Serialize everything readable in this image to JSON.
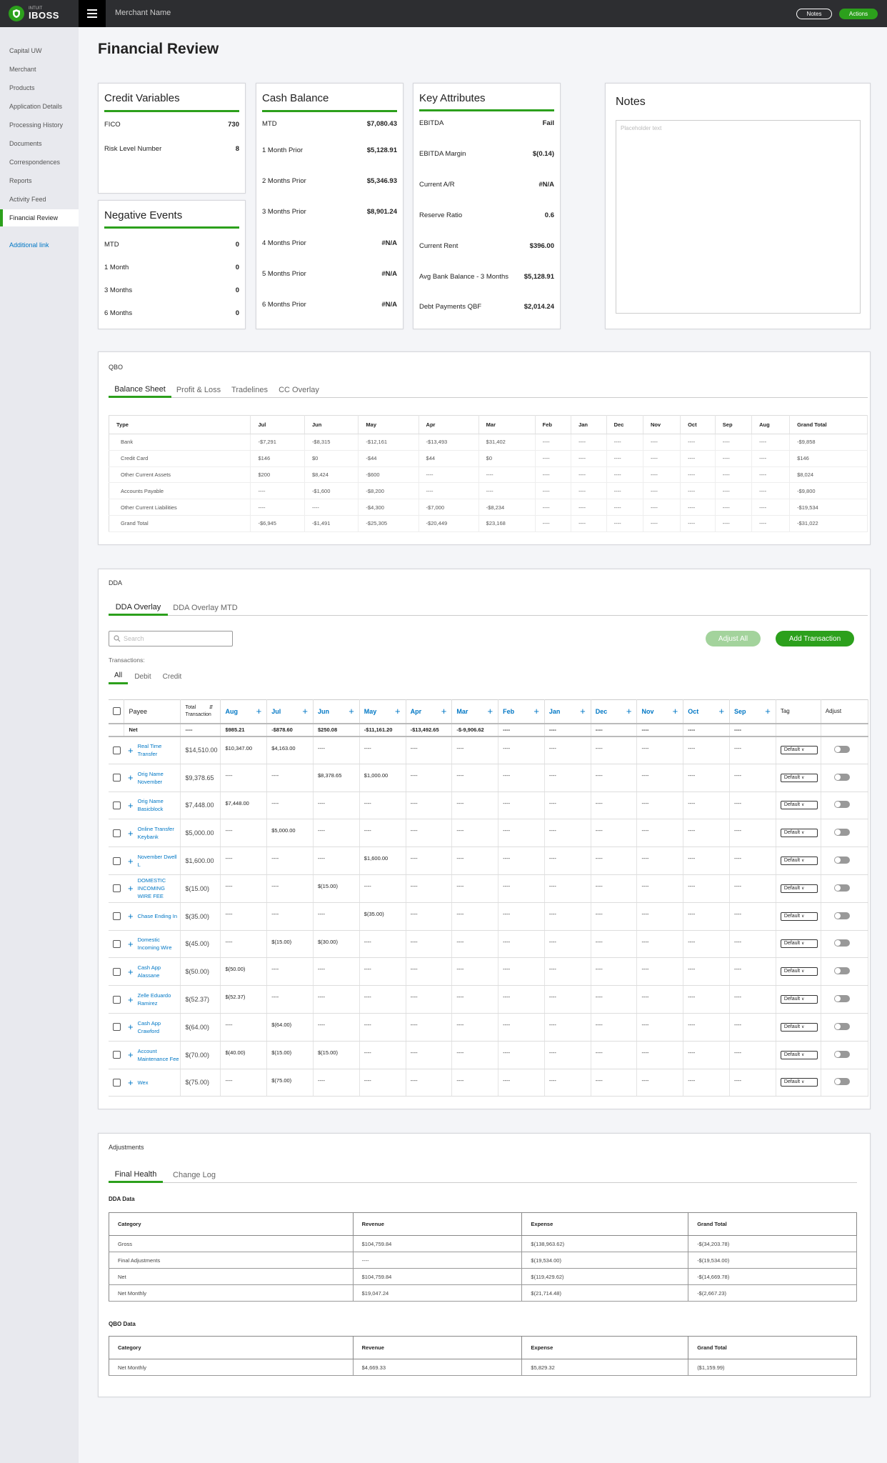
{
  "brand": {
    "small": "INTUIT",
    "name": "IBOSS"
  },
  "header": {
    "merchant": "Merchant Name",
    "notes_btn": "Notes",
    "actions_btn": "Actions"
  },
  "sidebar": {
    "items": [
      "Capital UW",
      "Merchant",
      "Products",
      "Application Details",
      "Processing History",
      "Documents",
      "Correspondences",
      "Reports",
      "Activity Feed",
      "Financial Review"
    ],
    "active": "Financial Review",
    "link": "Additional link"
  },
  "page_title": "Financial Review",
  "credit": {
    "title": "Credit Variables",
    "rows": [
      {
        "label": "FICO",
        "value": "730"
      },
      {
        "label": "Risk Level Number",
        "value": "8"
      }
    ]
  },
  "negative": {
    "title": "Negative Events",
    "rows": [
      {
        "label": "MTD",
        "value": "0"
      },
      {
        "label": "1 Month",
        "value": "0"
      },
      {
        "label": "3 Months",
        "value": "0"
      },
      {
        "label": "6 Months",
        "value": "0"
      }
    ]
  },
  "cash": {
    "title": "Cash Balance",
    "rows": [
      {
        "label": "MTD",
        "value": "$7,080.43"
      },
      {
        "label": "1 Month Prior",
        "value": "$5,128.91"
      },
      {
        "label": "2 Months Prior",
        "value": "$5,346.93"
      },
      {
        "label": "3 Months Prior",
        "value": "$8,901.24"
      },
      {
        "label": "4 Months Prior",
        "value": "#N/A"
      },
      {
        "label": "5 Months Prior",
        "value": "#N/A"
      },
      {
        "label": "6 Months Prior",
        "value": "#N/A"
      }
    ]
  },
  "key": {
    "title": "Key Attributes",
    "rows": [
      {
        "label": "EBITDA",
        "value": "Fail"
      },
      {
        "label": "EBITDA Margin",
        "value": "$(0.14)"
      },
      {
        "label": "Current A/R",
        "value": "#N/A"
      },
      {
        "label": "Reserve Ratio",
        "value": "0.6"
      },
      {
        "label": "Current Rent",
        "value": "$396.00"
      },
      {
        "label": "Avg Bank Balance - 3 Months",
        "value": "$5,128.91"
      },
      {
        "label": "Debt Payments QBF",
        "value": "$2,014.24"
      }
    ]
  },
  "notes": {
    "title": "Notes",
    "placeholder": "Placeholder text"
  },
  "qbo": {
    "label": "QBO",
    "tabs": [
      "Balance Sheet",
      "Profit & Loss",
      "Tradelines",
      "CC Overlay"
    ],
    "headers": [
      "Type",
      "Jul",
      "Jun",
      "May",
      "Apr",
      "Mar",
      "Feb",
      "Jan",
      "Dec",
      "Nov",
      "Oct",
      "Sep",
      "Aug",
      "Grand Total"
    ],
    "rows": [
      [
        "Bank",
        "-$7,291",
        "-$8,315",
        "-$12,161",
        "-$13,493",
        "$31,402",
        "----",
        "----",
        "----",
        "----",
        "----",
        "----",
        "----",
        "-$9,858"
      ],
      [
        "Credit Card",
        "$146",
        "$0",
        "-$44",
        "$44",
        "$0",
        "----",
        "----",
        "----",
        "----",
        "----",
        "----",
        "----",
        "$146"
      ],
      [
        "Other Current Assets",
        "$200",
        "$8,424",
        "-$600",
        "----",
        "----",
        "----",
        "----",
        "----",
        "----",
        "----",
        "----",
        "----",
        "$8,024"
      ],
      [
        "Accounts Payable",
        "----",
        "-$1,600",
        "-$8,200",
        "----",
        "----",
        "----",
        "----",
        "----",
        "----",
        "----",
        "----",
        "----",
        "-$9,800"
      ],
      [
        "Other Current Liabilities",
        "----",
        "----",
        "-$4,300",
        "-$7,000",
        "-$8,234",
        "----",
        "----",
        "----",
        "----",
        "----",
        "----",
        "----",
        "-$19,534"
      ],
      [
        "Grand Total",
        "-$6,945",
        "-$1,491",
        "-$25,305",
        "-$20,449",
        "$23,168",
        "----",
        "----",
        "----",
        "----",
        "----",
        "----",
        "----",
        "-$31,022"
      ]
    ]
  },
  "dda": {
    "label": "DDA",
    "tabs": [
      "DDA Overlay",
      "DDA Overlay MTD"
    ],
    "search_placeholder": "Search",
    "adjust_all": "Adjust All",
    "add_txn": "Add Transaction",
    "txn_label": "Transactions:",
    "filters": [
      "All",
      "Debit",
      "Credit"
    ],
    "payee_header": "Payee",
    "total_header": "Total Transaction",
    "months": [
      "Aug",
      "Jul",
      "Jun",
      "May",
      "Apr",
      "Mar",
      "Feb",
      "Jan",
      "Dec",
      "Nov",
      "Oct",
      "Sep"
    ],
    "tag_header": "Tag",
    "adjust_header": "Adjust",
    "net": {
      "label": "Net",
      "total": "----",
      "values": [
        "$985.21",
        "-$878.60",
        "$250.08",
        "-$11,161.20",
        "-$13,492.65",
        "-$-9,906.62",
        "----",
        "----",
        "----",
        "----",
        "----",
        "----"
      ]
    },
    "tag_default": "Default",
    "rows": [
      {
        "payee": "Real Time Transfer",
        "total": "$14,510.00",
        "values": [
          "$10,347.00",
          "$4,163.00",
          "----",
          "----",
          "----",
          "----",
          "----",
          "----",
          "----",
          "----",
          "----",
          "----"
        ]
      },
      {
        "payee": "Orig Name November",
        "total": "$9,378.65",
        "values": [
          "----",
          "----",
          "$8,378.65",
          "$1,000.00",
          "----",
          "----",
          "----",
          "----",
          "----",
          "----",
          "----",
          "----"
        ]
      },
      {
        "payee": "Orig Name Basicblock",
        "total": "$7,448.00",
        "values": [
          "$7,448.00",
          "----",
          "----",
          "----",
          "----",
          "----",
          "----",
          "----",
          "----",
          "----",
          "----",
          "----"
        ]
      },
      {
        "payee": "Online Transfer Keybank",
        "total": "$5,000.00",
        "values": [
          "----",
          "$5,000.00",
          "----",
          "----",
          "----",
          "----",
          "----",
          "----",
          "----",
          "----",
          "----",
          "----"
        ]
      },
      {
        "payee": "November Dwell L",
        "total": "$1,600.00",
        "values": [
          "----",
          "----",
          "----",
          "$1,600.00",
          "----",
          "----",
          "----",
          "----",
          "----",
          "----",
          "----",
          "----"
        ]
      },
      {
        "payee": "DOMESTIC INCOMING WIRE FEE",
        "total": "$(15.00)",
        "values": [
          "----",
          "----",
          "$(15.00)",
          "----",
          "----",
          "----",
          "----",
          "----",
          "----",
          "----",
          "----",
          "----"
        ]
      },
      {
        "payee": "Chase Ending In",
        "total": "$(35.00)",
        "values": [
          "----",
          "----",
          "----",
          "$(35.00)",
          "----",
          "----",
          "----",
          "----",
          "----",
          "----",
          "----",
          "----"
        ]
      },
      {
        "payee": "Domestic Incoming Wire",
        "total": "$(45.00)",
        "values": [
          "----",
          "$(15.00)",
          "$(30.00)",
          "----",
          "----",
          "----",
          "----",
          "----",
          "----",
          "----",
          "----",
          "----"
        ]
      },
      {
        "payee": "Cash App Alassane",
        "total": "$(50.00)",
        "values": [
          "$(50.00)",
          "----",
          "----",
          "----",
          "----",
          "----",
          "----",
          "----",
          "----",
          "----",
          "----",
          "----"
        ]
      },
      {
        "payee": "Zelle Eduardo Ramirez",
        "total": "$(52.37)",
        "values": [
          "$(52.37)",
          "----",
          "----",
          "----",
          "----",
          "----",
          "----",
          "----",
          "----",
          "----",
          "----",
          "----"
        ]
      },
      {
        "payee": "Cash App Crawford",
        "total": "$(64.00)",
        "values": [
          "----",
          "$(64.00)",
          "----",
          "----",
          "----",
          "----",
          "----",
          "----",
          "----",
          "----",
          "----",
          "----"
        ]
      },
      {
        "payee": "Account Maintenance Fee",
        "total": "$(70.00)",
        "values": [
          "$(40.00)",
          "$(15.00)",
          "$(15.00)",
          "----",
          "----",
          "----",
          "----",
          "----",
          "----",
          "----",
          "----",
          "----"
        ]
      },
      {
        "payee": "Wex",
        "total": "$(75.00)",
        "values": [
          "----",
          "$(75.00)",
          "----",
          "----",
          "----",
          "----",
          "----",
          "----",
          "----",
          "----",
          "----",
          "----"
        ]
      }
    ]
  },
  "adjustments": {
    "label": "Adjustments",
    "tabs": [
      "Final Health",
      "Change Log"
    ],
    "dda_label": "DDA Data",
    "qbo_label": "QBO Data",
    "headers": [
      "Category",
      "Revenue",
      "Expense",
      "Grand Total"
    ],
    "dda_rows": [
      [
        "Gross",
        "$104,759.84",
        "$(138,963.62)",
        "-$(34,203.78)"
      ],
      [
        "Final Adjustments",
        "----",
        "$(19,534.00)",
        "-$(19,534.00)"
      ],
      [
        "Net",
        "$104,759.84",
        "$(119,429.62)",
        "-$(14,669.78)"
      ],
      [
        "Net Monthly",
        "$19,047.24",
        "$(21,714.48)",
        "-$(2,667.23)"
      ]
    ],
    "qbo_rows": [
      [
        "Net Monthly",
        "$4,669.33",
        "$5,829.32",
        "($1,159.99)"
      ]
    ]
  }
}
